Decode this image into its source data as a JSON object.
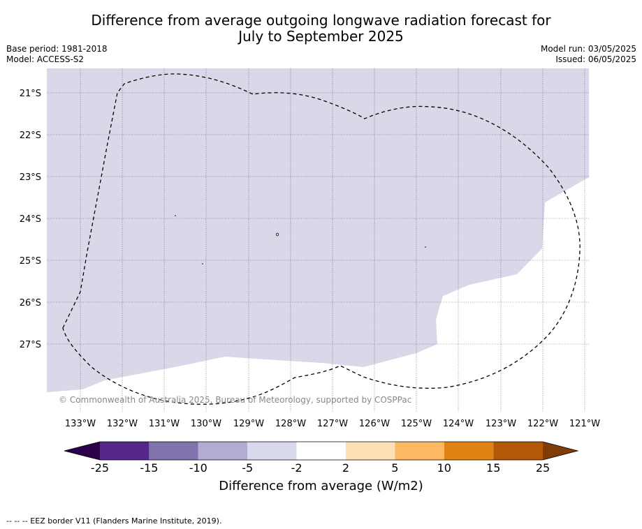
{
  "header": {
    "title_line1": "Difference from average outgoing longwave radiation forecast for",
    "title_line2": "July to September 2025",
    "base_period": "Base period: 1981-2018",
    "model": "Model: ACCESS-S2",
    "model_run": "Model run: 03/05/2025",
    "issued": "Issued: 06/05/2025"
  },
  "map": {
    "lon_labels": [
      "133°W",
      "132°W",
      "131°W",
      "130°W",
      "129°W",
      "128°W",
      "127°W",
      "126°W",
      "125°W",
      "124°W",
      "123°W",
      "122°W",
      "121°W"
    ],
    "lat_labels": [
      "21°S",
      "22°S",
      "23°S",
      "24°S",
      "25°S",
      "26°S",
      "27°S"
    ],
    "copyright": "© Commonwealth of Australia 2025, Bureau of Meteorology, supported by COSPPac",
    "colors": {
      "anomaly_fill": "#d8d8e8",
      "grid": "#555577",
      "eez": "#000000"
    }
  },
  "colorbar": {
    "title": "Difference from average (W/m2)",
    "tick_labels": [
      "-25",
      "-15",
      "-10",
      "-5",
      "-2",
      "2",
      "5",
      "10",
      "15",
      "25"
    ],
    "colors": {
      "under": "#2d004b",
      "c1": "#542788",
      "c2": "#8073ac",
      "c3": "#b2abd2",
      "c4": "#d8daeb",
      "c5": "#ffffff",
      "c6": "#fee0b6",
      "c7": "#fdb863",
      "c8": "#e08214",
      "c9": "#b35806",
      "over": "#7f3b08"
    }
  },
  "footer": {
    "legend": "--  --  -- EEZ border V11 (Flanders Marine Institute, 2019)."
  }
}
